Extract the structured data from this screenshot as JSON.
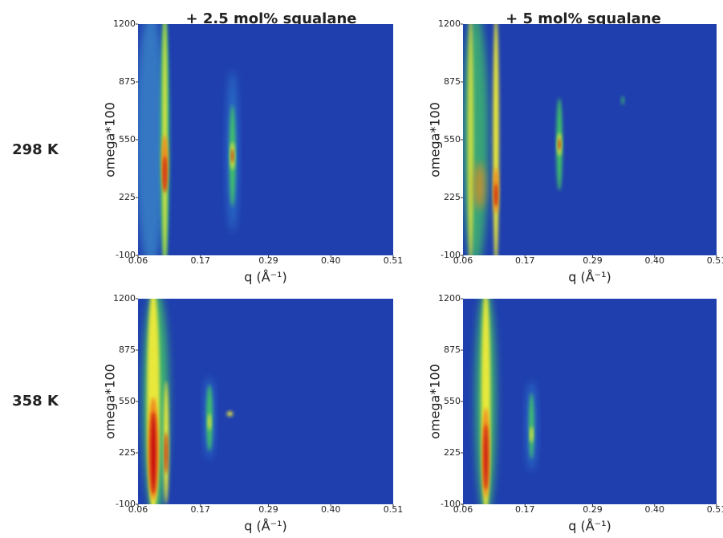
{
  "column_labels": [
    "+ 2.5 mol% squalane",
    "+ 5 mol% squalane"
  ],
  "row_labels": [
    "298 K",
    "358 K"
  ],
  "chart_data": [
    {
      "type": "heatmap",
      "xlabel": "q (Å⁻¹)",
      "ylabel": "omega*100",
      "xlim": [
        0.06,
        0.51
      ],
      "ylim": [
        -100,
        1200
      ],
      "xticks": [
        0.06,
        0.17,
        0.29,
        {
          "value": 0.4,
          "label": "0.40"
        },
        0.51
      ],
      "yticks": [
        -100,
        225,
        550,
        875,
        1200
      ]
    },
    {
      "type": "heatmap",
      "xlabel": "q (Å⁻¹)",
      "ylabel": "omega*100",
      "xlim": [
        0.06,
        0.51
      ],
      "ylim": [
        -100,
        1200
      ],
      "xticks": [
        0.06,
        0.17,
        0.29,
        {
          "value": 0.4,
          "label": "0.40"
        },
        0.51
      ],
      "yticks": [
        -100,
        225,
        550,
        875,
        1200
      ]
    },
    {
      "type": "heatmap",
      "xlabel": "q (Å⁻¹)",
      "ylabel": "omega*100",
      "xlim": [
        0.06,
        0.51
      ],
      "ylim": [
        -100,
        1200
      ],
      "xticks": [
        0.06,
        0.17,
        0.29,
        {
          "value": 0.4,
          "label": "0.40"
        },
        0.51
      ],
      "yticks": [
        -100,
        225,
        550,
        875,
        1200
      ]
    },
    {
      "type": "heatmap",
      "xlabel": "q (Å⁻¹)",
      "ylabel": "omega*100",
      "xlim": [
        0.06,
        0.51
      ],
      "ylim": [
        -100,
        1200
      ],
      "xticks": [
        0.06,
        0.17,
        0.29,
        {
          "value": 0.4,
          "label": "0.40"
        },
        0.51
      ],
      "yticks": [
        -100,
        225,
        550,
        875,
        1200
      ]
    }
  ]
}
